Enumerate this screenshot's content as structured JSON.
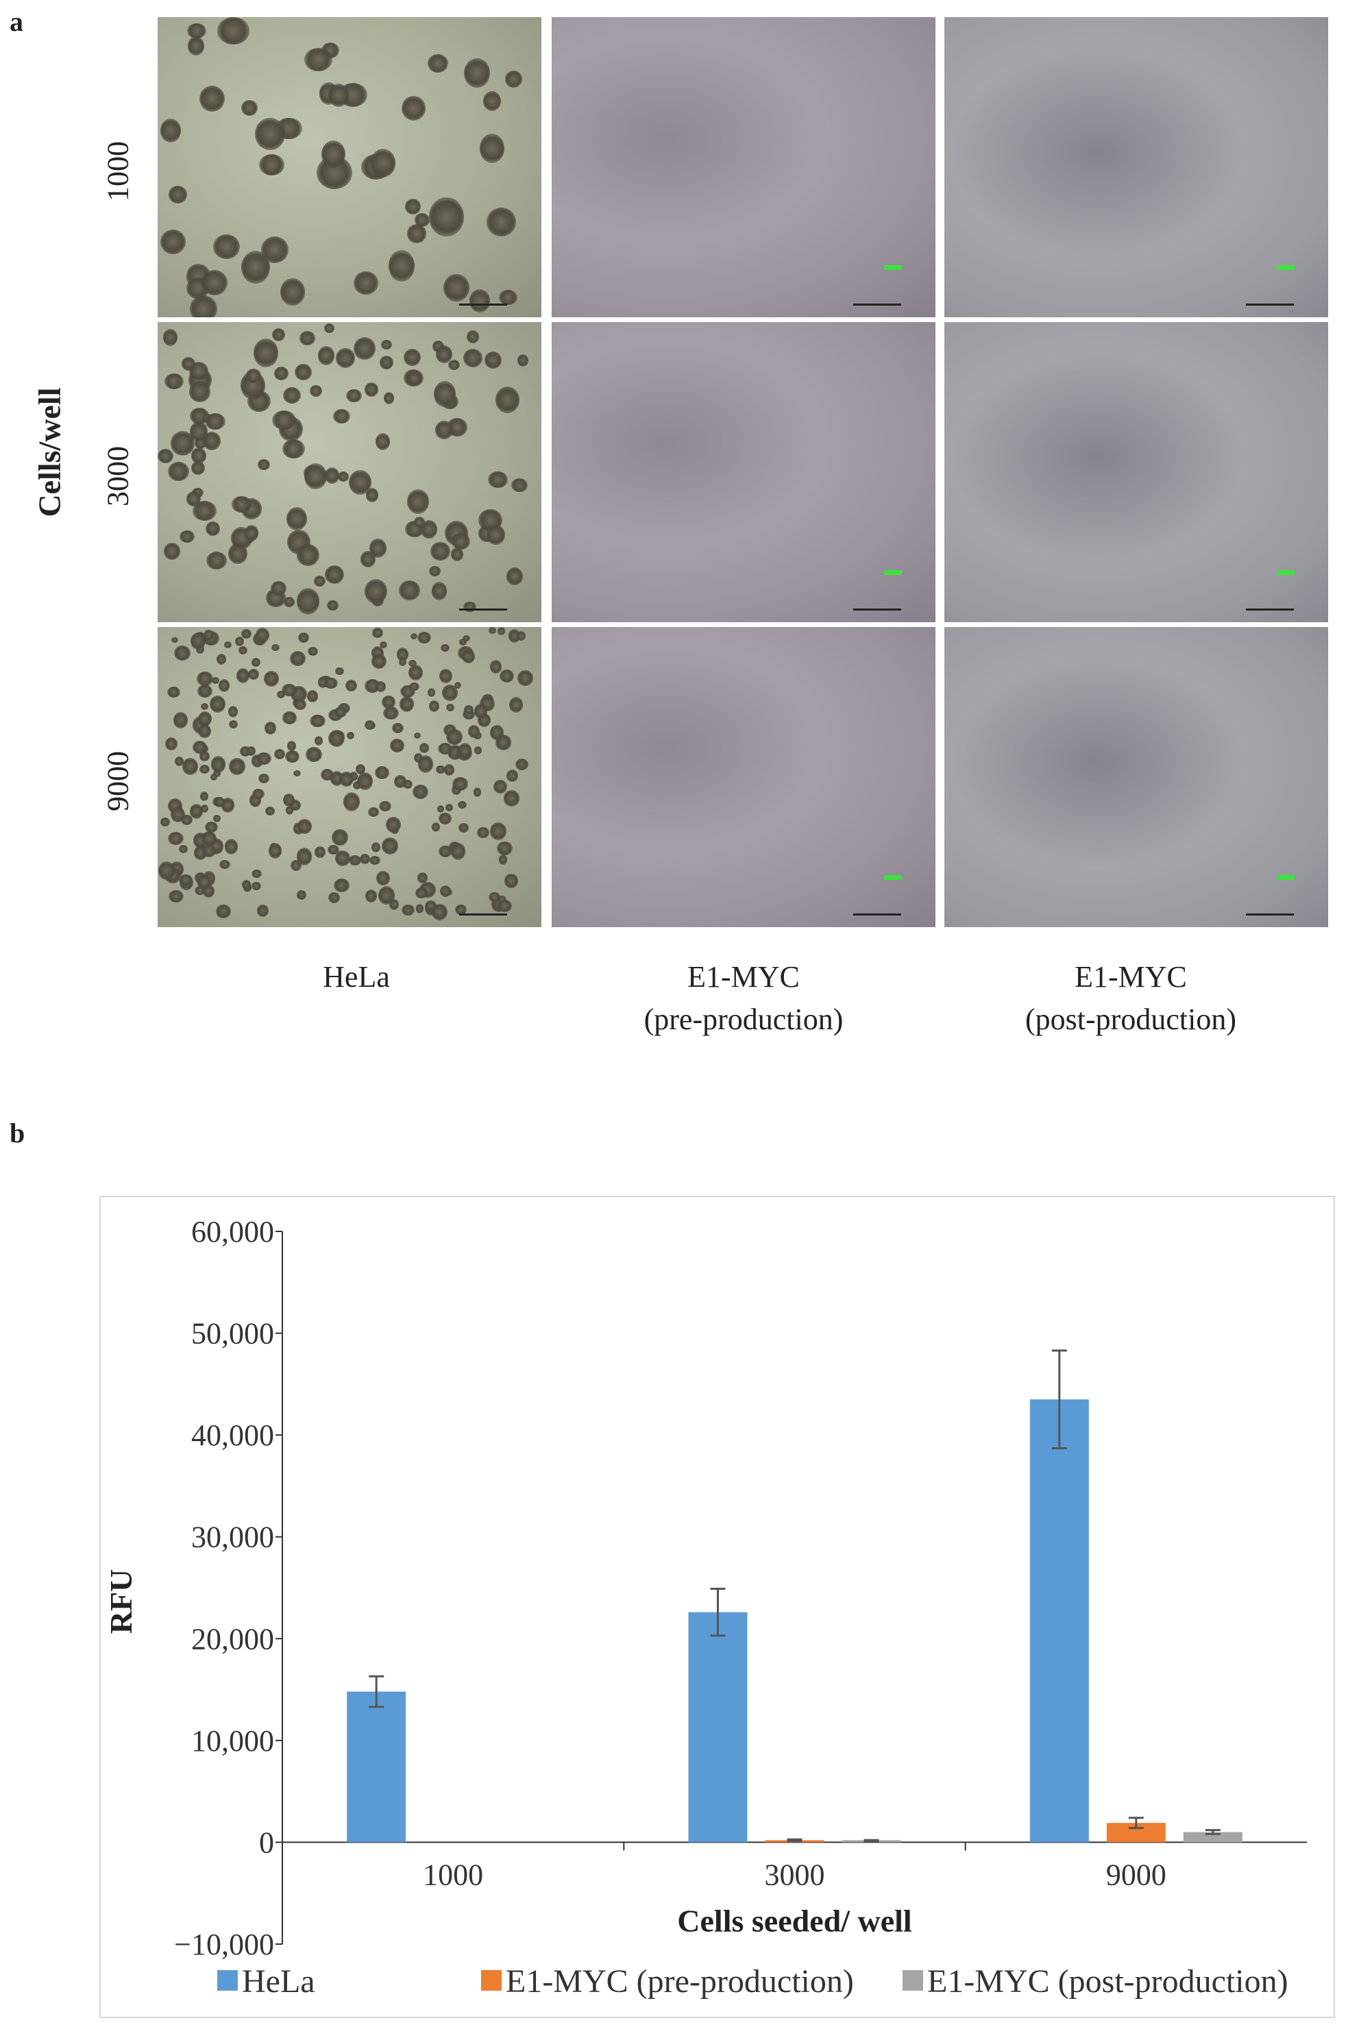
{
  "panel_a": {
    "letter": "a",
    "y_title": "Cells/well",
    "rows": [
      "1000",
      "3000",
      "9000"
    ],
    "columns": [
      {
        "line1": "HeLa",
        "line2": ""
      },
      {
        "line1": "E1-MYC",
        "line2": "(pre-production)"
      },
      {
        "line1": "E1-MYC",
        "line2": "(post-production)"
      }
    ]
  },
  "panel_b": {
    "letter": "b"
  },
  "chart_data": {
    "type": "bar",
    "title": "",
    "xlabel": "Cells seeded/ well",
    "ylabel": "RFU",
    "categories": [
      "1000",
      "3000",
      "9000"
    ],
    "ylim": [
      -10000,
      60000
    ],
    "yticks": [
      -10000,
      0,
      10000,
      20000,
      30000,
      40000,
      50000,
      60000
    ],
    "ytick_labels": [
      "−10,000",
      "0",
      "10,000",
      "20,000",
      "30,000",
      "40,000",
      "50,000",
      "60,000"
    ],
    "grid": false,
    "legend_position": "bottom",
    "series": [
      {
        "name": "HeLa",
        "color": "#5b9bd5",
        "values": [
          14800,
          22600,
          43500
        ],
        "errors": [
          1500,
          2300,
          4800
        ]
      },
      {
        "name": "E1-MYC (pre-production)",
        "color": "#ed7d31",
        "values": [
          0,
          200,
          1900
        ],
        "errors": [
          0,
          80,
          500
        ]
      },
      {
        "name": "E1-MYC (post-production)",
        "color": "#a5a5a5",
        "values": [
          0,
          150,
          1000
        ],
        "errors": [
          0,
          60,
          200
        ]
      }
    ]
  }
}
